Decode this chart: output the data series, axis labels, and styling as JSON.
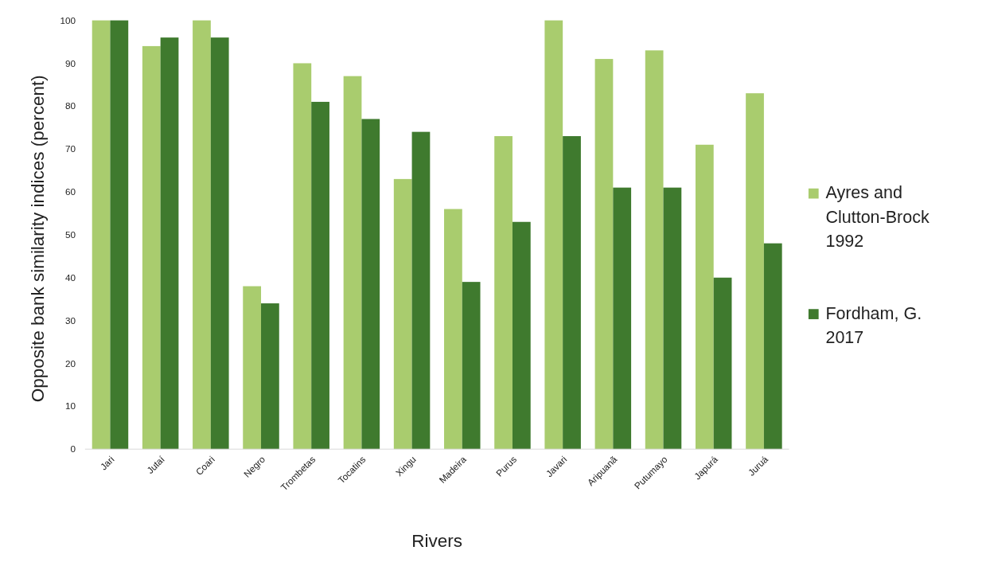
{
  "chart_data": {
    "type": "bar",
    "xlabel": "Rivers",
    "ylabel": "Opposite bank similarity indices (percent)",
    "categories": [
      "Jari",
      "Jutaí",
      "Coari",
      "Negro",
      "Trombetas",
      "Tocatins",
      "Xingu",
      "Madeira",
      "Purus",
      "Javari",
      "Aripuanã",
      "Putumayo",
      "Japurá",
      "Juruá"
    ],
    "series": [
      {
        "name": "Ayres and Clutton-Brock 1992",
        "color": "#a9cc6e",
        "values": [
          100,
          94,
          100,
          38,
          90,
          87,
          63,
          56,
          73,
          100,
          91,
          93,
          71,
          83
        ]
      },
      {
        "name": "Fordham, G. 2017",
        "color": "#3f7a2e",
        "values": [
          100,
          96,
          96,
          34,
          81,
          77,
          74,
          39,
          53,
          73,
          61,
          61,
          40,
          48
        ]
      }
    ],
    "ylim": [
      0,
      100
    ],
    "yticks": [
      0,
      10,
      20,
      30,
      40,
      50,
      60,
      70,
      80,
      90,
      100
    ],
    "grid": false,
    "legend": "right"
  }
}
